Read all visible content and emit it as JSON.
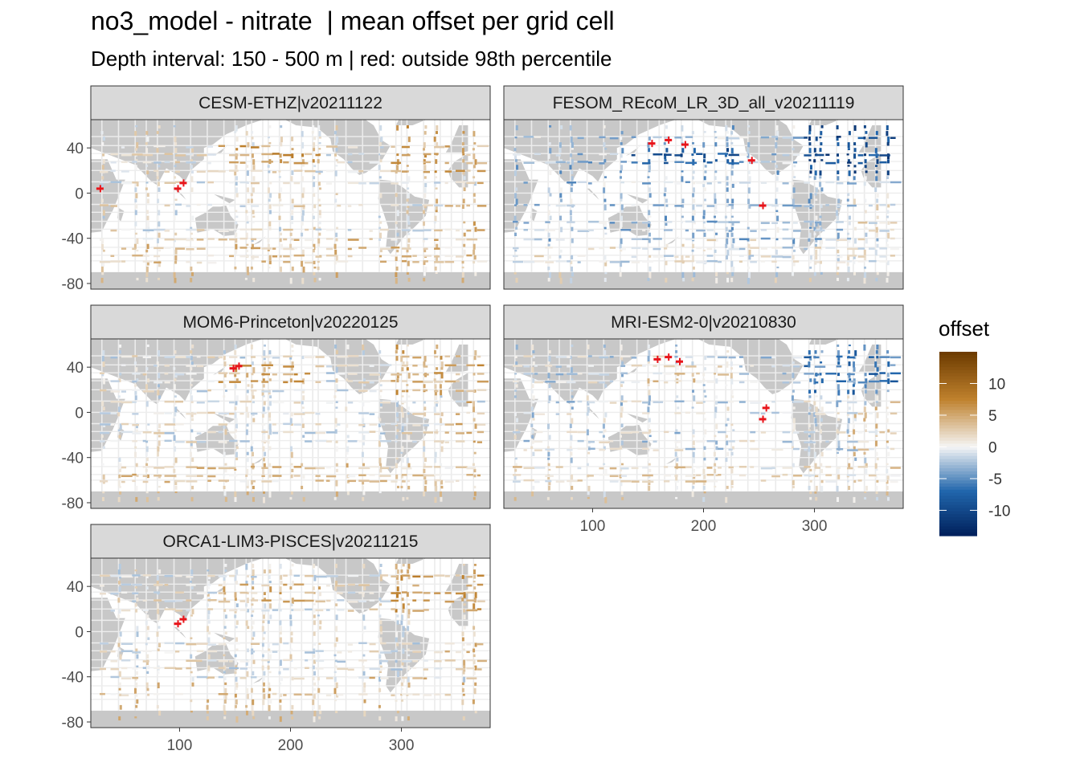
{
  "title": "no3_model - nitrate  | mean offset per grid cell",
  "subtitle": "Depth interval: 150 - 500 m | red: outside 98th percentile",
  "colors": {
    "panel_strip": "#d9d9d9",
    "land": "#c8c8c8",
    "ocean": "#ffffff",
    "outlier": "#e8141a",
    "scale_low": "#00205b",
    "scale_mid": "#f5f5f5",
    "scale_high": "#6b3a00"
  },
  "chart_data": {
    "type": "heatmap",
    "facets": [
      {
        "label": "CESM-ETHZ|v20211122"
      },
      {
        "label": "FESOM_REcoM_LR_3D_all_v20211119"
      },
      {
        "label": "MOM6-Princeton|v20220125"
      },
      {
        "label": "MRI-ESM2-0|v20210830"
      },
      {
        "label": "ORCA1-LIM3-PISCES|v20211215"
      }
    ],
    "x_ticks": [
      100,
      200,
      300
    ],
    "y_ticks": [
      40,
      0,
      -40,
      -80
    ],
    "xlim": [
      20,
      380
    ],
    "ylim": [
      -85,
      65
    ],
    "legend": {
      "title": "offset",
      "position": "right",
      "ticks": [
        10,
        5,
        0,
        -5,
        -10
      ],
      "range": [
        -14,
        15
      ]
    }
  }
}
